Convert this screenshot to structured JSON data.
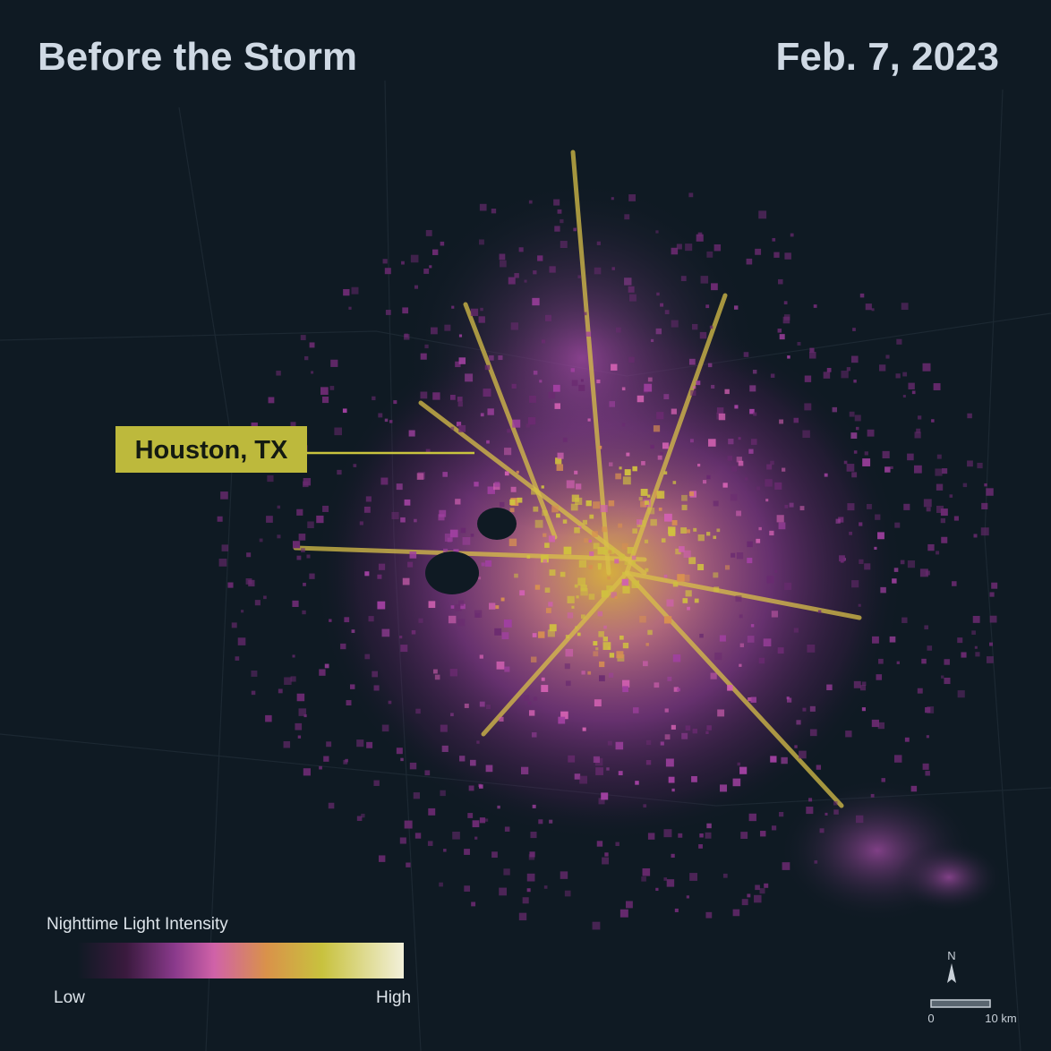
{
  "header": {
    "title": "Before the Storm",
    "date": "Feb. 7, 2023"
  },
  "map": {
    "label": "Houston, TX"
  },
  "legend": {
    "title": "Nighttime Light Intensity",
    "low": "Low",
    "high": "High"
  },
  "north_arrow": {
    "label": "N"
  },
  "scale_bar": {
    "start": "0",
    "end": "10 km"
  }
}
